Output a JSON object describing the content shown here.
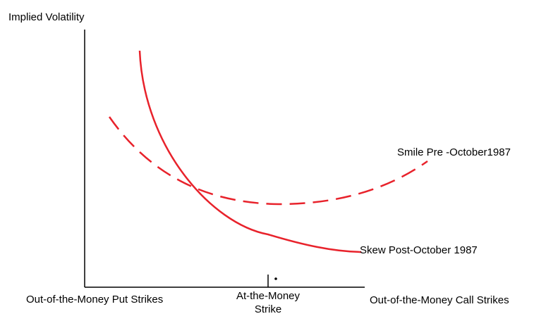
{
  "axes": {
    "y_label": "Implied Volatility",
    "x_labels": {
      "left": "Out-of-the-Money Put Strikes",
      "center": [
        "At-the-Money",
        "Strike"
      ],
      "right": "Out-of-the-Money Call Strikes"
    }
  },
  "curves": [
    {
      "label": "Smile Pre -October1987"
    },
    {
      "label": "Skew Post-October 1987"
    }
  ]
}
